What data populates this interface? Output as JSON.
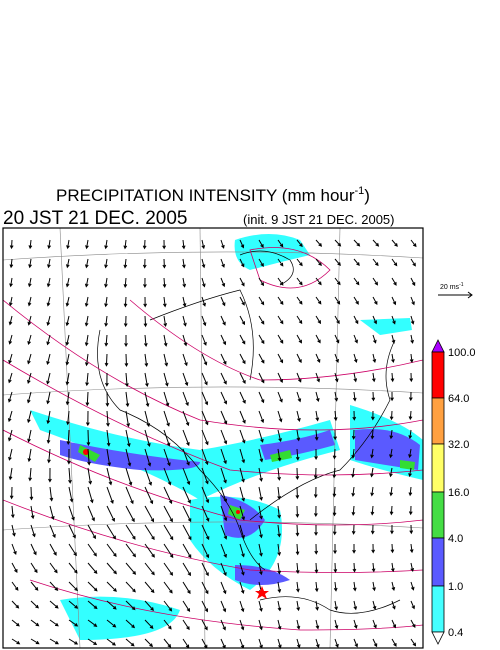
{
  "title": {
    "text": "PRECIPITATION INTENSITY (mm hour",
    "superscript": "-1",
    "close": ")"
  },
  "valid_time": "20 JST 21 DEC. 2005",
  "init_time": "(init. 9 JST 21 DEC. 2005)",
  "wind_scale": {
    "text": "20 ms",
    "superscript": "-1"
  },
  "colorbar": {
    "labels": [
      "100.0",
      "64.0",
      "32.0",
      "16.0",
      "4.0",
      "1.0",
      "0.4"
    ]
  }
}
